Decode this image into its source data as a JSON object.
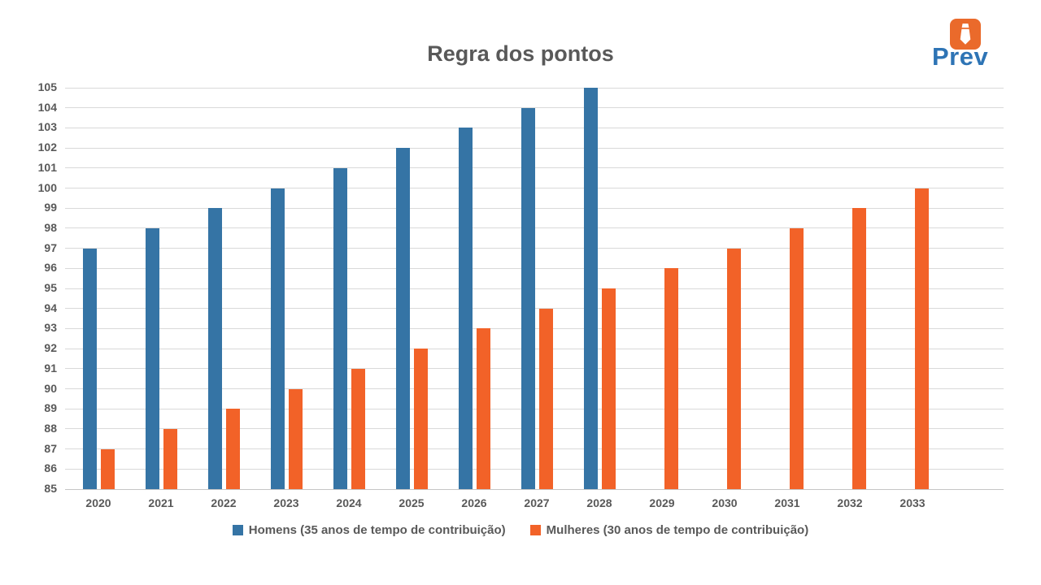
{
  "page": {
    "background_color": "#FFFFFF"
  },
  "logo": {
    "brand": "Prev",
    "icon": "tie-icon",
    "icon_bg_color": "#EA6A2B",
    "icon_glyph_color": "#FFFFFF",
    "brand_color": "#2E74B5"
  },
  "chart_data": {
    "type": "bar",
    "title": "Regra dos pontos",
    "title_color": "#595959",
    "categories": [
      "2020",
      "2021",
      "2022",
      "2023",
      "2024",
      "2025",
      "2026",
      "2027",
      "2028",
      "2029",
      "2030",
      "2031",
      "2032",
      "2033"
    ],
    "series": [
      {
        "key": "homens",
        "name": "Homens (35 anos de tempo de contribuição)",
        "color": "#3574A5",
        "values": [
          97,
          98,
          99,
          100,
          101,
          102,
          103,
          104,
          105,
          null,
          null,
          null,
          null,
          null
        ]
      },
      {
        "key": "mulheres",
        "name": "Mulheres (30 anos de tempo de contribuição)",
        "color": "#F26228",
        "values": [
          87,
          88,
          89,
          90,
          91,
          92,
          93,
          94,
          95,
          96,
          97,
          98,
          99,
          100
        ]
      }
    ],
    "xlabel": "",
    "ylabel": "",
    "ylim": [
      85,
      105
    ],
    "y_ticks": [
      85,
      86,
      87,
      88,
      89,
      90,
      91,
      92,
      93,
      94,
      95,
      96,
      97,
      98,
      99,
      100,
      101,
      102,
      103,
      104,
      105
    ],
    "grid": true,
    "gridline_color": "#D9D9D9",
    "axis_label_color": "#595959",
    "legend_position": "bottom"
  }
}
